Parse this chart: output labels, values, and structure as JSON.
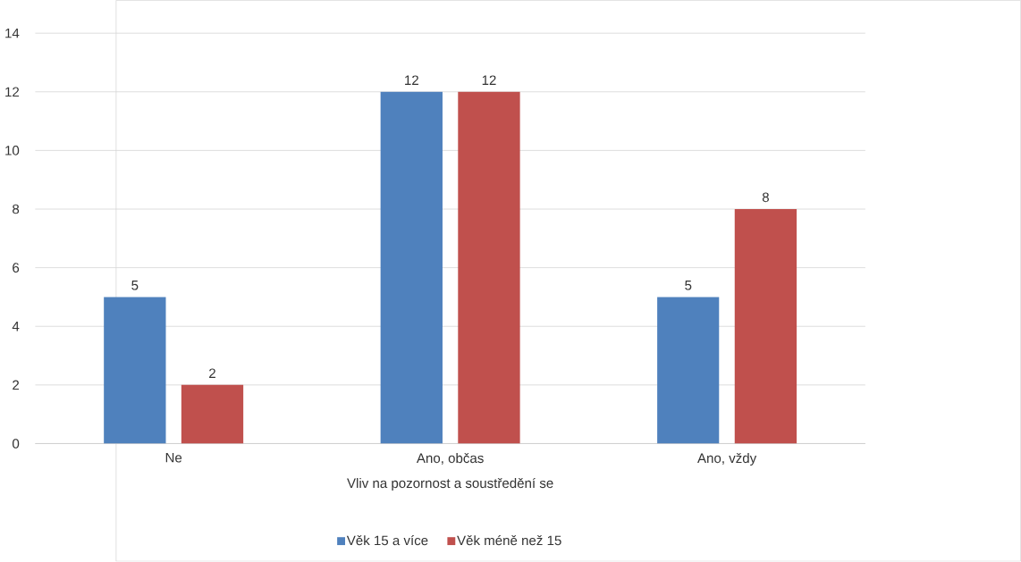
{
  "chart_data": {
    "type": "bar",
    "xlabel": "Vliv na pozornost a soustředění se",
    "categories": [
      "Ne",
      "Ano, občas",
      "Ano, vždy"
    ],
    "series": [
      {
        "name": "Věk 15 a více",
        "color": "#4f81bd",
        "values": [
          5,
          12,
          5
        ]
      },
      {
        "name": "Věk méně než 15",
        "color": "#c0504d",
        "values": [
          2,
          12,
          8
        ]
      }
    ],
    "ylim": [
      0,
      14
    ],
    "yticks": [
      0,
      2,
      4,
      6,
      8,
      10,
      12,
      14
    ],
    "grid": "y",
    "legend": "bottom",
    "data_labels": true
  }
}
